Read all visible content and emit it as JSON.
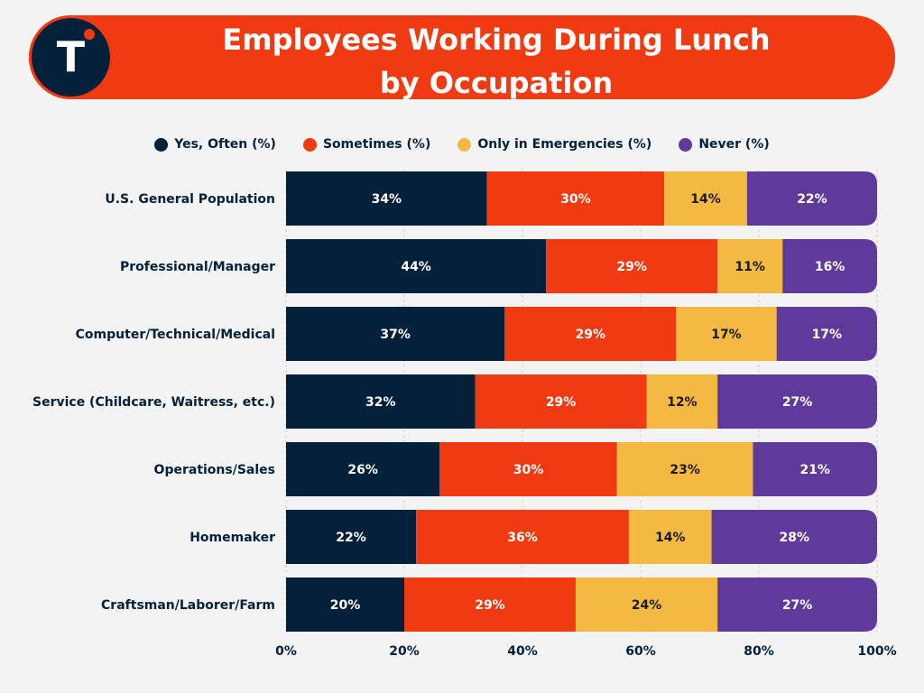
{
  "header": {
    "title_lines": [
      "Employees Working During Lunch",
      "by Occupation"
    ],
    "logo_letter": "T",
    "logo_icon": "brand-logo-icon",
    "colors": {
      "banner": "#ef3a12",
      "logo_bg": "#03213a"
    }
  },
  "chart_data": {
    "type": "bar",
    "orientation": "horizontal",
    "stacked": true,
    "title": "Employees Working During Lunch by Occupation",
    "xlabel": "",
    "ylabel": "",
    "xlim": [
      0,
      100
    ],
    "x_ticks": [
      "0%",
      "20%",
      "40%",
      "60%",
      "80%",
      "100%"
    ],
    "x_tick_values": [
      0,
      20,
      40,
      60,
      80,
      100
    ],
    "grid": true,
    "legend_position": "top",
    "categories": [
      "U.S. General Population",
      "Professional/Manager",
      "Computer/Technical/Medical",
      "Service (Childcare, Waitress, etc.)",
      "Operations/Sales",
      "Homemaker",
      "Craftsman/Laborer/Farm"
    ],
    "series": [
      {
        "name": "Yes, Often (%)",
        "color": "#03213a",
        "label_color": "#ffffff",
        "values": [
          34,
          44,
          37,
          32,
          26,
          22,
          20
        ]
      },
      {
        "name": "Sometimes (%)",
        "color": "#ef3a12",
        "label_color": "#ffffff",
        "values": [
          30,
          29,
          29,
          29,
          30,
          36,
          29
        ]
      },
      {
        "name": "Only in Emergencies (%)",
        "color": "#f4b942",
        "label_color": "#1a1a1a",
        "values": [
          14,
          11,
          17,
          12,
          23,
          14,
          24
        ]
      },
      {
        "name": "Never (%)",
        "color": "#5f3a9a",
        "label_color": "#ffffff",
        "values": [
          22,
          16,
          17,
          27,
          21,
          28,
          27
        ]
      }
    ]
  }
}
